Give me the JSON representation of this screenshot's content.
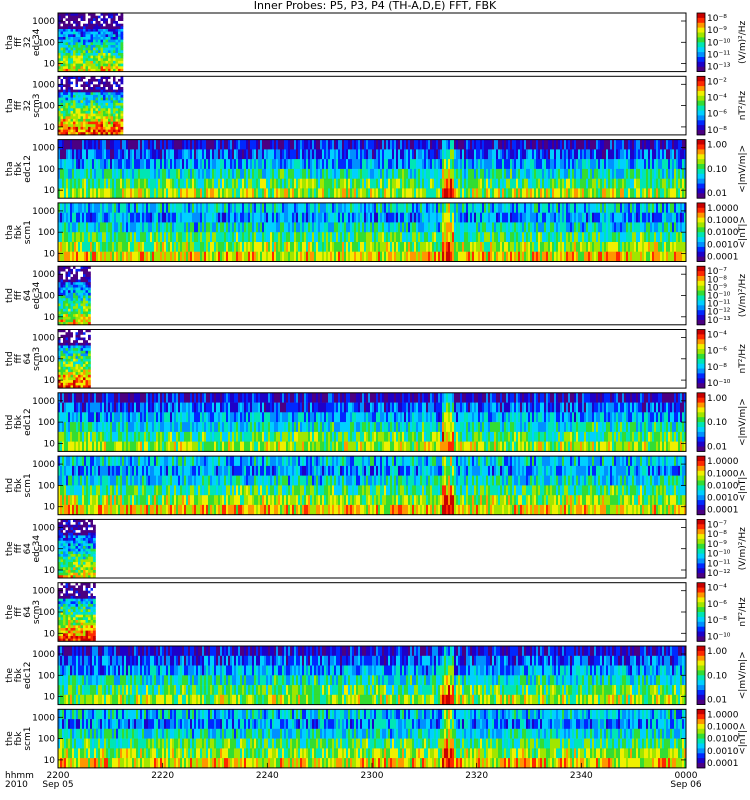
{
  "title": "Inner Probes: P5, P3, P4 (TH-A,D,E) FFT, FBK",
  "colors": {
    "colormap": [
      "#4b0082",
      "#1e00c8",
      "#0028ff",
      "#0090ff",
      "#00d0ff",
      "#00e6b4",
      "#33dd33",
      "#a0e600",
      "#f0f000",
      "#ff9600",
      "#ff2800",
      "#c80000"
    ]
  },
  "chart_data": {
    "type": "heatmap",
    "title": "Inner Probes: P5, P3, P4 (TH-A,D,E) FFT, FBK",
    "x_axis": {
      "range": [
        "2200",
        "0000"
      ],
      "tick_labels": [
        "2200",
        "2220",
        "2240",
        "2300",
        "2320",
        "2340",
        "0000"
      ],
      "row_label_top": "hhmm",
      "row_label_bottom": "2010",
      "date_labels": {
        "start": "Sep 05",
        "end": "Sep 06"
      }
    },
    "panels": [
      {
        "probe": "tha",
        "instrument": "fff",
        "extra": "32",
        "channel": "edc34",
        "y_ticks": [
          "1000",
          "100",
          "10"
        ],
        "cbar_label": "(V/m)²/Hz",
        "cbar_ticks": [
          "10⁻⁸",
          "10⁻⁹",
          "10⁻¹⁰",
          "10⁻¹¹",
          "10⁻¹³"
        ],
        "data_end_hhmm": "2212",
        "scale": "log"
      },
      {
        "probe": "tha",
        "instrument": "fff",
        "extra": "32",
        "channel": "scm3",
        "y_ticks": [
          "1000",
          "100",
          "10"
        ],
        "cbar_label": "nT²/Hz",
        "cbar_ticks": [
          "10⁻²",
          "10⁻⁴",
          "10⁻⁶",
          "10⁻⁸"
        ],
        "data_end_hhmm": "2212",
        "scale": "log"
      },
      {
        "probe": "tha",
        "instrument": "fbk",
        "extra": "",
        "channel": "edc12",
        "y_ticks": [
          "1000",
          "100",
          "10"
        ],
        "cbar_label": "<|mV/m|>",
        "cbar_ticks": [
          "1.00",
          "0.10",
          "0.01"
        ],
        "data_end_hhmm": "0000",
        "scale": "log"
      },
      {
        "probe": "tha",
        "instrument": "fbk",
        "extra": "",
        "channel": "scm1",
        "y_ticks": [
          "1000",
          "100",
          "10"
        ],
        "cbar_label": "<|nT|>",
        "cbar_ticks": [
          "1.0000",
          "0.1000",
          "0.0100",
          "0.0010",
          "0.0001"
        ],
        "data_end_hhmm": "0000",
        "scale": "log"
      },
      {
        "probe": "thd",
        "instrument": "fff",
        "extra": "64",
        "channel": "edc34",
        "y_ticks": [
          "1000",
          "100",
          "10"
        ],
        "cbar_label": "(V/m)²/Hz",
        "cbar_ticks": [
          "10⁻⁷",
          "10⁻⁸",
          "10⁻⁹",
          "10⁻¹⁰",
          "10⁻¹¹",
          "10⁻¹²",
          "10⁻¹³"
        ],
        "data_end_hhmm": "2206",
        "scale": "log"
      },
      {
        "probe": "thd",
        "instrument": "fff",
        "extra": "64",
        "channel": "scm3",
        "y_ticks": [
          "1000",
          "100",
          "10"
        ],
        "cbar_label": "nT²/Hz",
        "cbar_ticks": [
          "10⁻⁴",
          "10⁻⁶",
          "10⁻⁸",
          "10⁻¹⁰"
        ],
        "data_end_hhmm": "2206",
        "scale": "log"
      },
      {
        "probe": "thd",
        "instrument": "fbk",
        "extra": "",
        "channel": "edc12",
        "y_ticks": [
          "1000",
          "100",
          "10"
        ],
        "cbar_label": "<|mV/m|>",
        "cbar_ticks": [
          "1.00",
          "0.10",
          "0.01"
        ],
        "data_end_hhmm": "0000",
        "scale": "log"
      },
      {
        "probe": "thd",
        "instrument": "fbk",
        "extra": "",
        "channel": "scm1",
        "y_ticks": [
          "1000",
          "100",
          "10"
        ],
        "cbar_label": "<|nT|>",
        "cbar_ticks": [
          "1.0000",
          "0.1000",
          "0.0100",
          "0.0010",
          "0.0001"
        ],
        "data_end_hhmm": "0000",
        "scale": "log"
      },
      {
        "probe": "the",
        "instrument": "fff",
        "extra": "64",
        "channel": "edc34",
        "y_ticks": [
          "1000",
          "100",
          "10"
        ],
        "cbar_label": "(V/m)²/Hz",
        "cbar_ticks": [
          "10⁻⁷",
          "10⁻⁸",
          "10⁻⁹",
          "10⁻¹⁰",
          "10⁻¹¹",
          "10⁻¹²"
        ],
        "data_end_hhmm": "2207",
        "scale": "log"
      },
      {
        "probe": "the",
        "instrument": "fff",
        "extra": "64",
        "channel": "scm3",
        "y_ticks": [
          "1000",
          "100",
          "10"
        ],
        "cbar_label": "nT²/Hz",
        "cbar_ticks": [
          "10⁻⁴",
          "10⁻⁶",
          "10⁻⁸",
          "10⁻¹⁰"
        ],
        "data_end_hhmm": "2207",
        "scale": "log"
      },
      {
        "probe": "the",
        "instrument": "fbk",
        "extra": "",
        "channel": "edc12",
        "y_ticks": [
          "1000",
          "100",
          "10"
        ],
        "cbar_label": "<|mV/m|>",
        "cbar_ticks": [
          "1.00",
          "0.10",
          "0.01"
        ],
        "data_end_hhmm": "0000",
        "scale": "log"
      },
      {
        "probe": "the",
        "instrument": "fbk",
        "extra": "",
        "channel": "scm1",
        "y_ticks": [
          "1000",
          "100",
          "10"
        ],
        "cbar_label": "<|nT|>",
        "cbar_ticks": [
          "1.0000",
          "0.1000",
          "0.0100",
          "0.0010",
          "0.0001"
        ],
        "data_end_hhmm": "0000",
        "scale": "log"
      }
    ]
  }
}
